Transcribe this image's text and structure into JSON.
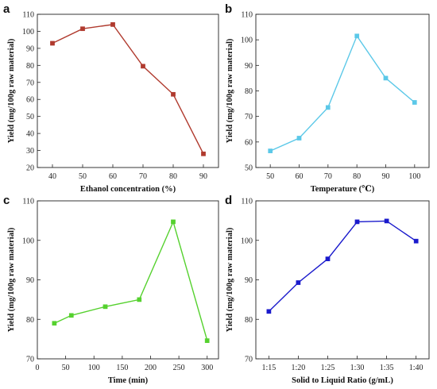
{
  "chart_data": [
    {
      "panel": "a",
      "type": "line",
      "title": "",
      "xlabel": "Ethanol concentration (%)",
      "ylabel": "Yield (mg/100g raw material)",
      "xlim": [
        35,
        95
      ],
      "ylim": [
        20,
        110
      ],
      "xticks": [
        40,
        50,
        60,
        70,
        80,
        90
      ],
      "yticks": [
        20,
        30,
        40,
        50,
        60,
        70,
        80,
        90,
        100,
        110
      ],
      "x": [
        40,
        50,
        60,
        70,
        80,
        90
      ],
      "series": [
        {
          "values": [
            93,
            101.5,
            104,
            79.5,
            63,
            28
          ],
          "color": "#b03a2e"
        }
      ],
      "grid": false
    },
    {
      "panel": "b",
      "type": "line",
      "title": "",
      "xlabel": "Temperature (℃)",
      "ylabel": "Yield (mg/100g raw material)",
      "xlim": [
        45,
        105
      ],
      "ylim": [
        50,
        110
      ],
      "xticks": [
        50,
        60,
        70,
        80,
        90,
        100
      ],
      "yticks": [
        50,
        60,
        70,
        80,
        90,
        100,
        110
      ],
      "x": [
        50,
        60,
        70,
        80,
        90,
        100
      ],
      "series": [
        {
          "values": [
            56.5,
            61.5,
            73.5,
            101.5,
            85,
            75.5
          ],
          "color": "#5bc8e8"
        }
      ],
      "grid": false
    },
    {
      "panel": "c",
      "type": "line",
      "title": "",
      "xlabel": "Time (min)",
      "ylabel": "Yield (mg/100g raw material)",
      "xlim": [
        0,
        320
      ],
      "ylim": [
        70,
        110
      ],
      "xticks": [
        0,
        50,
        100,
        150,
        200,
        250,
        300
      ],
      "yticks": [
        70,
        80,
        90,
        100,
        110
      ],
      "x": [
        30,
        60,
        120,
        180,
        240,
        300
      ],
      "series": [
        {
          "values": [
            79,
            81,
            83.2,
            85,
            104.7,
            74.6
          ],
          "color": "#55d12e"
        }
      ],
      "grid": false
    },
    {
      "panel": "d",
      "type": "line",
      "title": "",
      "xlabel": "Solid to Liquid Ratio (g/mL)",
      "ylabel": "Yield (mg/100g raw material)",
      "categories": [
        "1:15",
        "1:20",
        "1:25",
        "1:30",
        "1:35",
        "1:40"
      ],
      "ylim": [
        70,
        110
      ],
      "yticks": [
        70,
        80,
        90,
        100,
        110
      ],
      "series": [
        {
          "values": [
            82,
            89.3,
            95.3,
            104.7,
            104.9,
            99.8
          ],
          "color": "#1a1acc"
        }
      ],
      "grid": false
    }
  ]
}
